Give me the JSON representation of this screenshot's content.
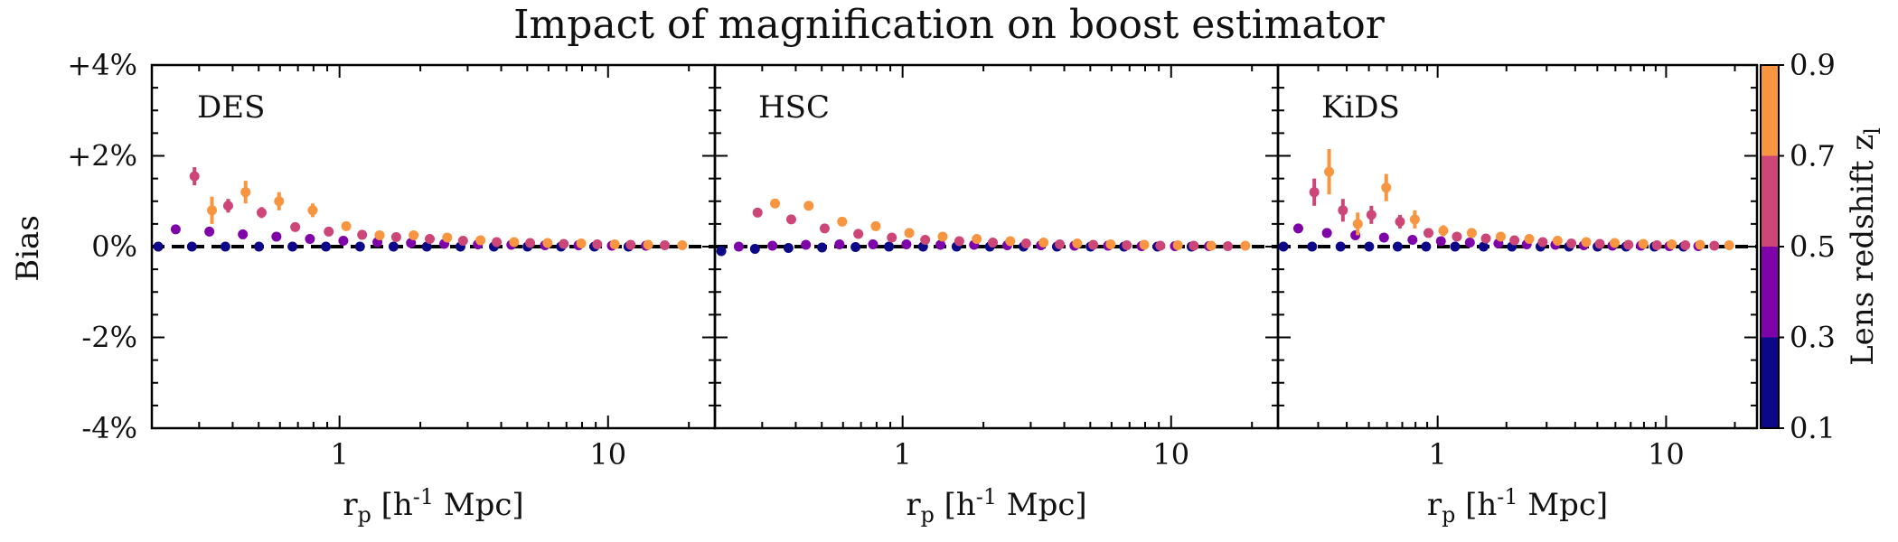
{
  "figure": {
    "title": "Impact of magnification on boost estimator",
    "ylabel": "Bias",
    "xlabel": "r_p [h^{-1} Mpc]",
    "y_tick_labels": [
      "+4%",
      "+2%",
      "0%",
      "-2%",
      "-4%"
    ],
    "colorbar": {
      "label": "Lens redshift z_l",
      "tick_labels": [
        "0.9",
        "0.7",
        "0.5",
        "0.3",
        "0.1"
      ],
      "colors": [
        "#0d0887",
        "#7e03a8",
        "#cc4778",
        "#f89540"
      ]
    },
    "colors": {
      "bin1": "#0d0887",
      "bin2": "#7e03a8",
      "bin3": "#cc4778",
      "bin4": "#f89540",
      "zero_line": "#000000"
    }
  },
  "chart_data": [
    {
      "type": "scatter",
      "panel": "DES",
      "x": [
        0.266,
        0.355,
        0.473,
        0.631,
        0.841,
        1.12,
        1.5,
        2.0,
        2.66,
        3.55,
        4.73,
        6.31,
        8.41,
        11.2,
        15.0
      ],
      "xlim": [
        0.2,
        25
      ],
      "ylim": [
        -4,
        4
      ],
      "xscale": "log",
      "x_tick_labels": [
        "1",
        "10"
      ],
      "series": [
        {
          "values": [
            0.0,
            0.0,
            0.0,
            0.0,
            0.0,
            0.0,
            0.0,
            0.0,
            0.0,
            0.0,
            0.0,
            0.0,
            0.0,
            0.0,
            0.0
          ],
          "errors": [
            0,
            0,
            0,
            0,
            0,
            0,
            0,
            0,
            0,
            0,
            0,
            0,
            0,
            0,
            0
          ]
        },
        {
          "values": [
            0.38,
            0.33,
            0.27,
            0.22,
            0.17,
            0.13,
            0.1,
            0.08,
            0.06,
            0.05,
            0.04,
            0.03,
            0.03,
            0.02,
            0.02
          ],
          "errors": [
            0,
            0,
            0,
            0,
            0,
            0,
            0,
            0,
            0,
            0,
            0,
            0,
            0,
            0,
            0
          ]
        },
        {
          "values": [
            1.55,
            0.9,
            0.75,
            0.43,
            0.33,
            0.26,
            0.21,
            0.17,
            0.13,
            0.1,
            0.08,
            0.06,
            0.05,
            0.04,
            0.03
          ],
          "errors": [
            0.2,
            0.15,
            0.12,
            0.08,
            0.06,
            0.05,
            0,
            0,
            0,
            0,
            0,
            0,
            0,
            0,
            0
          ]
        },
        {
          "values": [
            0.8,
            1.2,
            1.0,
            0.8,
            0.45,
            0.25,
            0.25,
            0.2,
            0.14,
            0.1,
            0.08,
            0.07,
            0.05,
            0.04,
            0.03
          ],
          "errors": [
            0.3,
            0.25,
            0.2,
            0.15,
            0.1,
            0.07,
            0.06,
            0.05,
            0,
            0,
            0,
            0,
            0,
            0,
            0
          ]
        }
      ]
    },
    {
      "type": "scatter",
      "panel": "HSC",
      "x": [
        0.266,
        0.355,
        0.473,
        0.631,
        0.841,
        1.12,
        1.5,
        2.0,
        2.66,
        3.55,
        4.73,
        6.31,
        8.41,
        11.2,
        15.0
      ],
      "xlim": [
        0.2,
        25
      ],
      "ylim": [
        -4,
        4
      ],
      "xscale": "log",
      "x_tick_labels": [
        "1",
        "10"
      ],
      "series": [
        {
          "values": [
            -0.1,
            -0.05,
            -0.03,
            -0.02,
            -0.01,
            0.0,
            0.0,
            0.0,
            0.0,
            0.0,
            0.0,
            0.0,
            0.0,
            0.0,
            0.0
          ],
          "errors": [
            0,
            0,
            0,
            0,
            0,
            0,
            0,
            0,
            0,
            0,
            0,
            0,
            0,
            0,
            0
          ]
        },
        {
          "values": [
            0.0,
            0.02,
            0.04,
            0.05,
            0.05,
            0.05,
            0.04,
            0.04,
            0.03,
            0.03,
            0.02,
            0.02,
            0.01,
            0.01,
            0.01
          ],
          "errors": [
            0,
            0,
            0,
            0,
            0,
            0,
            0,
            0,
            0,
            0,
            0,
            0,
            0,
            0,
            0
          ]
        },
        {
          "values": [
            0.75,
            0.6,
            0.4,
            0.28,
            0.2,
            0.15,
            0.12,
            0.09,
            0.07,
            0.05,
            0.04,
            0.03,
            0.02,
            0.02,
            0.01
          ],
          "errors": [
            0,
            0,
            0,
            0,
            0,
            0,
            0,
            0,
            0,
            0,
            0,
            0,
            0,
            0,
            0
          ]
        },
        {
          "values": [
            0.95,
            0.9,
            0.55,
            0.45,
            0.3,
            0.22,
            0.17,
            0.12,
            0.09,
            0.07,
            0.05,
            0.04,
            0.03,
            0.02,
            0.02
          ],
          "errors": [
            0.1,
            0.1,
            0.08,
            0.06,
            0.05,
            0,
            0,
            0,
            0,
            0,
            0,
            0,
            0,
            0,
            0
          ]
        }
      ]
    },
    {
      "type": "scatter",
      "panel": "KiDS",
      "x": [
        0.266,
        0.355,
        0.473,
        0.631,
        0.841,
        1.12,
        1.5,
        2.0,
        2.66,
        3.55,
        4.73,
        6.31,
        8.41,
        11.2,
        15.0
      ],
      "xlim": [
        0.2,
        25
      ],
      "ylim": [
        -4,
        4
      ],
      "xscale": "log",
      "x_tick_labels": [
        "1",
        "10"
      ],
      "series": [
        {
          "values": [
            0.0,
            0.0,
            0.0,
            0.0,
            0.0,
            0.0,
            0.0,
            0.0,
            0.0,
            0.0,
            0.0,
            0.0,
            0.0,
            0.0,
            0.0
          ],
          "errors": [
            0,
            0,
            0,
            0,
            0,
            0,
            0,
            0,
            0,
            0,
            0,
            0,
            0,
            0,
            0
          ]
        },
        {
          "values": [
            0.4,
            0.3,
            0.25,
            0.2,
            0.15,
            0.12,
            0.09,
            0.07,
            0.05,
            0.04,
            0.03,
            0.02,
            0.02,
            0.01,
            0.01
          ],
          "errors": [
            0,
            0,
            0,
            0,
            0,
            0,
            0,
            0,
            0,
            0,
            0,
            0,
            0,
            0,
            0
          ]
        },
        {
          "values": [
            1.2,
            0.8,
            0.7,
            0.55,
            0.3,
            0.22,
            0.18,
            0.14,
            0.1,
            0.07,
            0.06,
            0.04,
            0.03,
            0.03,
            0.02
          ],
          "errors": [
            0.3,
            0.25,
            0.2,
            0.15,
            0.1,
            0.07,
            0.06,
            0.05,
            0,
            0,
            0,
            0,
            0,
            0,
            0
          ]
        },
        {
          "values": [
            1.65,
            0.5,
            1.3,
            0.6,
            0.35,
            0.3,
            0.22,
            0.17,
            0.13,
            0.1,
            0.08,
            0.06,
            0.05,
            0.04,
            0.03
          ],
          "errors": [
            0.5,
            0.25,
            0.3,
            0.2,
            0.12,
            0.1,
            0.08,
            0.06,
            0.05,
            0,
            0,
            0,
            0,
            0,
            0
          ]
        }
      ]
    }
  ]
}
